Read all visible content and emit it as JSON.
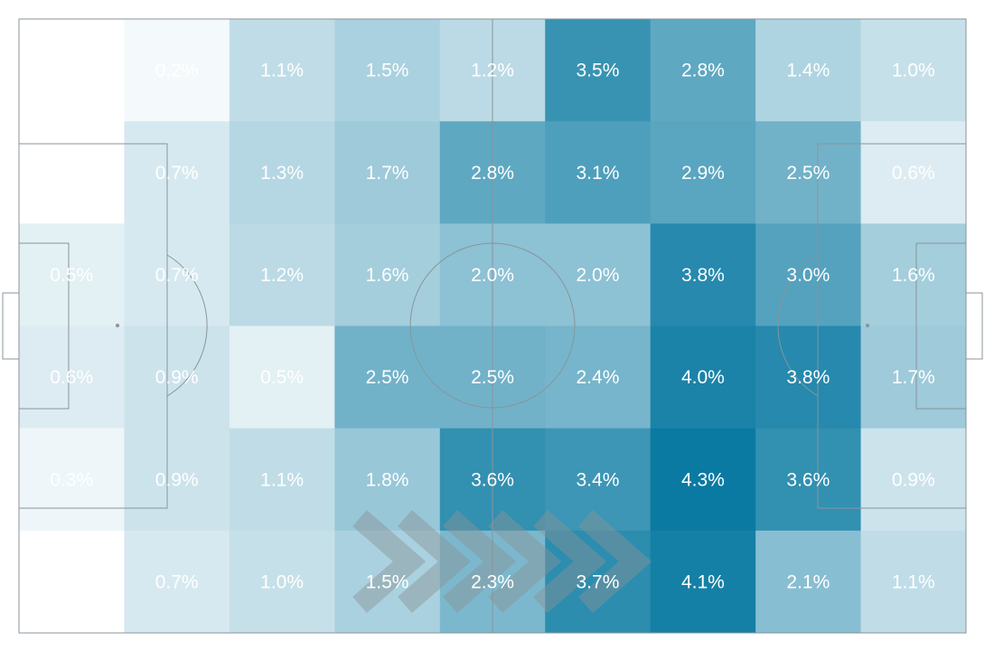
{
  "chart_data": {
    "type": "heatmap",
    "title": "",
    "unit": "%",
    "columns": 9,
    "rows": 6,
    "color_scale": {
      "min_color": "#ffffff",
      "max_color": "#0a7aa2",
      "min": 0,
      "max": 4.3
    },
    "direction_of_play": "left-to-right",
    "values": [
      [
        0.0,
        0.2,
        1.1,
        1.5,
        1.2,
        3.5,
        2.8,
        1.4,
        1.0
      ],
      [
        0.0,
        0.7,
        1.3,
        1.7,
        2.8,
        3.1,
        2.9,
        2.5,
        0.6
      ],
      [
        0.5,
        0.7,
        1.2,
        1.6,
        2.0,
        2.0,
        3.8,
        3.0,
        1.6
      ],
      [
        0.6,
        0.9,
        0.5,
        2.5,
        2.5,
        2.4,
        4.0,
        3.8,
        1.7
      ],
      [
        0.3,
        0.9,
        1.1,
        1.8,
        3.6,
        3.4,
        4.3,
        3.6,
        0.9
      ],
      [
        0.0,
        0.7,
        1.0,
        1.5,
        2.3,
        3.7,
        4.1,
        2.1,
        1.1
      ]
    ],
    "labels": [
      [
        "",
        "0.2%",
        "1.1%",
        "1.5%",
        "1.2%",
        "3.5%",
        "2.8%",
        "1.4%",
        "1.0%"
      ],
      [
        "",
        "0.7%",
        "1.3%",
        "1.7%",
        "2.8%",
        "3.1%",
        "2.9%",
        "2.5%",
        "0.6%"
      ],
      [
        "0.5%",
        "0.7%",
        "1.2%",
        "1.6%",
        "2.0%",
        "2.0%",
        "3.8%",
        "3.0%",
        "1.6%"
      ],
      [
        "0.6%",
        "0.9%",
        "0.5%",
        "2.5%",
        "2.5%",
        "2.4%",
        "4.0%",
        "3.8%",
        "1.7%"
      ],
      [
        "0.3%",
        "0.9%",
        "1.1%",
        "1.8%",
        "3.6%",
        "3.4%",
        "4.3%",
        "3.6%",
        "0.9%"
      ],
      [
        "",
        "0.7%",
        "1.0%",
        "1.5%",
        "2.3%",
        "3.7%",
        "4.1%",
        "2.1%",
        "1.1%"
      ]
    ]
  }
}
